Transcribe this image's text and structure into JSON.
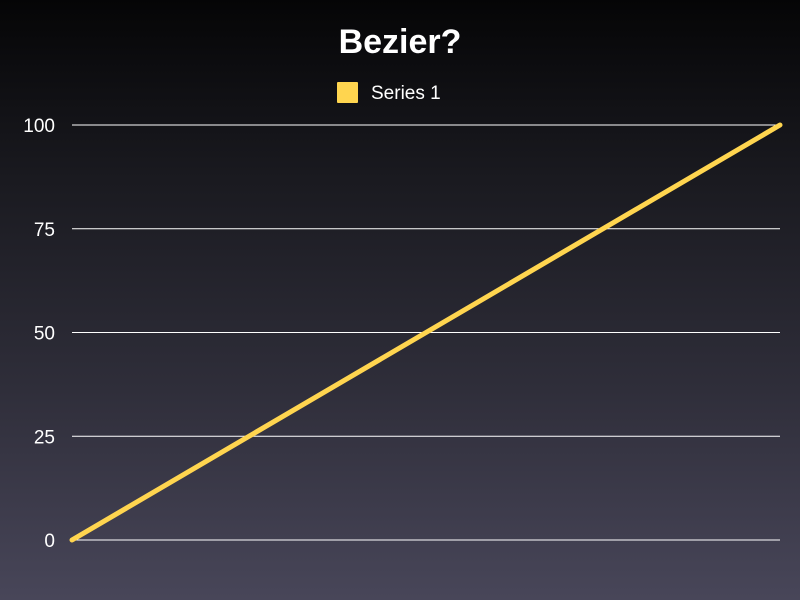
{
  "chart_data": {
    "type": "line",
    "title": "Bezier?",
    "legend": {
      "placement": "top-center",
      "entries": [
        "Series 1"
      ]
    },
    "xlabel": "",
    "ylabel": "",
    "grid": true,
    "ylim": [
      0,
      100
    ],
    "yticks": [
      "0",
      "25",
      "50",
      "75",
      "100"
    ],
    "series": [
      {
        "name": "Series 1",
        "color": "#FFD54F",
        "points": [
          {
            "x": 0,
            "y": 0
          },
          {
            "x": 1,
            "y": 100
          }
        ]
      }
    ]
  }
}
